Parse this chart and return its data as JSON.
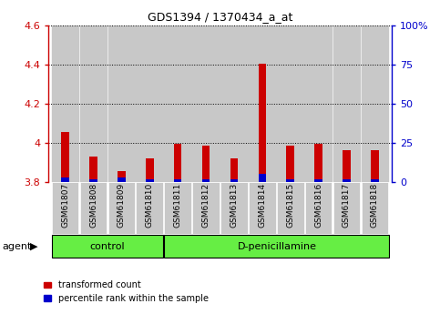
{
  "title": "GDS1394 / 1370434_a_at",
  "samples": [
    "GSM61807",
    "GSM61808",
    "GSM61809",
    "GSM61810",
    "GSM61811",
    "GSM61812",
    "GSM61813",
    "GSM61814",
    "GSM61815",
    "GSM61816",
    "GSM61817",
    "GSM61818"
  ],
  "red_values": [
    4.055,
    3.93,
    3.855,
    3.92,
    3.995,
    3.985,
    3.92,
    4.405,
    3.985,
    3.995,
    3.965,
    3.965
  ],
  "blue_values_pct": [
    3,
    2,
    3,
    2,
    2,
    2,
    2,
    5,
    2,
    2,
    2,
    2
  ],
  "baseline": 3.8,
  "ylim_left": [
    3.8,
    4.6
  ],
  "ylim_right": [
    0,
    100
  ],
  "yticks_left": [
    3.8,
    4.0,
    4.2,
    4.4,
    4.6
  ],
  "yticks_right": [
    0,
    25,
    50,
    75,
    100
  ],
  "ytick_labels_left": [
    "3.8",
    "4",
    "4.2",
    "4.4",
    "4.6"
  ],
  "ytick_labels_right": [
    "0",
    "25",
    "50",
    "75",
    "100%"
  ],
  "control_samples": 4,
  "control_label": "control",
  "treatment_label": "D-penicillamine",
  "agent_label": "agent",
  "legend_red": "transformed count",
  "legend_blue": "percentile rank within the sample",
  "red_color": "#cc0000",
  "blue_color": "#0000cc",
  "bar_bg_color": "#c8c8c8",
  "group_bg_color": "#66ee44",
  "bar_width": 0.55,
  "left_tick_color": "#cc0000",
  "right_tick_color": "#0000cc"
}
